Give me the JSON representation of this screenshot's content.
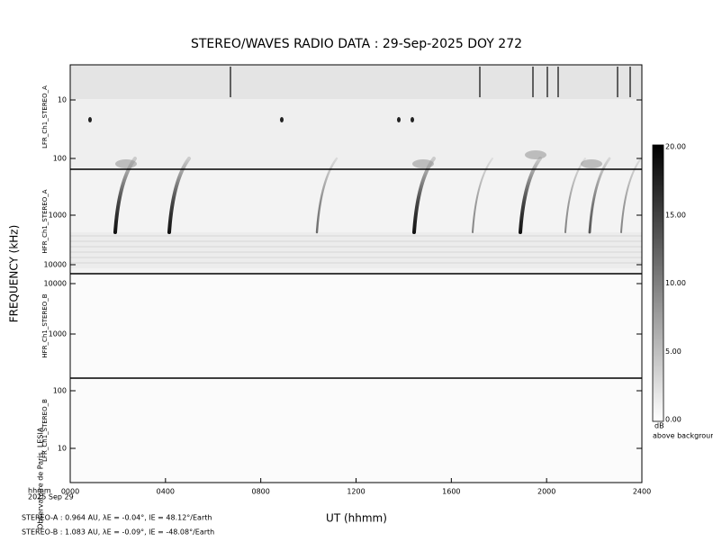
{
  "title": "STEREO/WAVES  RADIO  DATA : 29-Sep-2025  DOY 272",
  "y_axis_label": "FREQUENCY (kHz)",
  "x_axis_label": "UT (hhmm)",
  "x_ticks": [
    "0000",
    "0400",
    "0800",
    "1200",
    "1600",
    "2000",
    "2400"
  ],
  "date_label": [
    "hhmm",
    "2025 Sep 29"
  ],
  "panels": [
    {
      "label": "LFR_Ch1_STEREO_A",
      "ticks": [
        "10",
        "100"
      ]
    },
    {
      "label": "HFR_Ch1_STEREO_A",
      "ticks": [
        "1000",
        "10000"
      ]
    },
    {
      "label": "HFR_Ch1_STEREO_B",
      "ticks": [
        "10000",
        "1000"
      ]
    },
    {
      "label": "LFR_Ch1_STEREO_B",
      "ticks": [
        "100",
        "10"
      ]
    }
  ],
  "colorbar": {
    "ticks": [
      "20.00",
      "15.00",
      "10.00",
      "5.00",
      "0.00"
    ],
    "unit": "dB",
    "caption": "above background"
  },
  "credit": "Observatoire de Paris, LESIA",
  "footer": [
    "STEREO-A : 0.964 AU, λE = -0.04°, lE = 48.12°/Earth",
    "STEREO-B : 1.083 AU, λE = -0.09°, lE = -48.08°/Earth"
  ]
}
